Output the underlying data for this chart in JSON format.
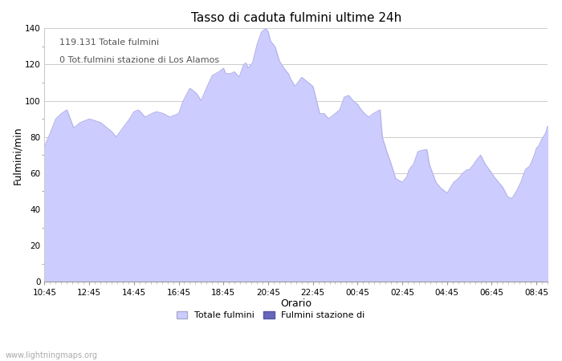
{
  "title": "Tasso di caduta fulmini ultime 24h",
  "xlabel": "Orario",
  "ylabel": "Fulmini/min",
  "annotation_line1": "119.131 Totale fulmini",
  "annotation_line2": "0 Tot.fulmini stazione di Los Alamos",
  "legend_label1": "Totale fulmini",
  "legend_label2": "Fulmini stazione di",
  "watermark": "www.lightningmaps.org",
  "fill_color": "#ccccff",
  "line_color": "#aaaadd",
  "fill_color2": "#6666bb",
  "ylim": [
    0,
    140
  ],
  "yticks": [
    0,
    20,
    40,
    60,
    80,
    100,
    120,
    140
  ],
  "xtick_labels": [
    "10:45",
    "12:45",
    "14:45",
    "16:45",
    "18:45",
    "20:45",
    "22:45",
    "00:45",
    "02:45",
    "04:45",
    "06:45",
    "08:45"
  ],
  "xtick_positions": [
    0,
    2,
    4,
    6,
    8,
    10,
    12,
    14,
    16,
    18,
    20,
    22
  ],
  "xlim": [
    0,
    22.5
  ],
  "key_t": [
    0,
    0.25,
    0.5,
    0.75,
    1.0,
    1.3,
    1.6,
    2.0,
    2.5,
    3.0,
    3.2,
    3.5,
    3.8,
    4.0,
    4.2,
    4.5,
    4.8,
    5.0,
    5.3,
    5.6,
    6.0,
    6.2,
    6.5,
    6.8,
    7.0,
    7.2,
    7.5,
    7.8,
    8.0,
    8.1,
    8.3,
    8.5,
    8.7,
    8.9,
    9.0,
    9.1,
    9.3,
    9.5,
    9.7,
    9.9,
    10.0,
    10.1,
    10.3,
    10.5,
    10.7,
    10.9,
    11.0,
    11.1,
    11.2,
    11.5,
    11.7,
    12.0,
    12.3,
    12.5,
    12.7,
    13.0,
    13.2,
    13.4,
    13.6,
    13.8,
    14.0,
    14.1,
    14.3,
    14.5,
    14.7,
    15.0,
    15.1,
    15.3,
    15.5,
    15.7,
    16.0,
    16.2,
    16.3,
    16.5,
    16.7,
    17.0,
    17.1,
    17.2,
    17.5,
    17.7,
    17.9,
    18.0,
    18.1,
    18.3,
    18.5,
    18.7,
    18.9,
    19.0,
    19.2,
    19.3,
    19.5,
    19.7,
    20.0,
    20.1,
    20.3,
    20.5,
    20.7,
    20.9,
    21.0,
    21.1,
    21.3,
    21.5,
    21.6,
    21.7,
    21.9,
    22.0,
    22.1,
    22.2,
    22.3,
    22.4,
    22.5
  ],
  "key_v": [
    75,
    82,
    90,
    93,
    95,
    85,
    88,
    90,
    88,
    83,
    80,
    85,
    90,
    94,
    95,
    91,
    93,
    94,
    93,
    91,
    93,
    100,
    107,
    104,
    100,
    106,
    114,
    116,
    118,
    115,
    115,
    116,
    113,
    120,
    121,
    118,
    121,
    131,
    138,
    140,
    138,
    133,
    130,
    122,
    118,
    115,
    112,
    110,
    108,
    113,
    111,
    108,
    93,
    93,
    90,
    93,
    95,
    102,
    103,
    100,
    98,
    96,
    93,
    91,
    93,
    95,
    80,
    72,
    65,
    57,
    55,
    58,
    62,
    65,
    72,
    73,
    73,
    65,
    55,
    52,
    50,
    49,
    51,
    55,
    57,
    60,
    62,
    62,
    65,
    67,
    70,
    65,
    60,
    58,
    55,
    52,
    47,
    46,
    48,
    50,
    55,
    62,
    63,
    64,
    70,
    74,
    75,
    78,
    80,
    82,
    86
  ]
}
